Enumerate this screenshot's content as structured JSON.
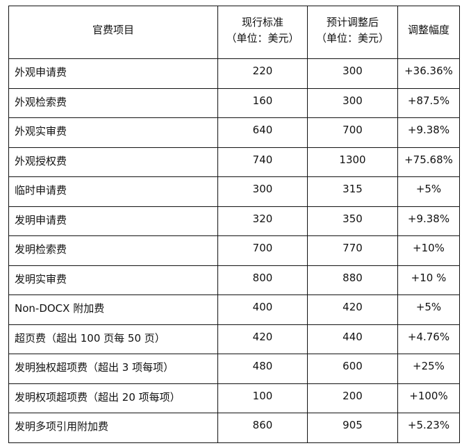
{
  "table": {
    "headers": [
      {
        "line1": "官费项目",
        "line2": ""
      },
      {
        "line1": "现行标准",
        "line2": "（单位：美元）"
      },
      {
        "line1": "预计调整后",
        "line2": "（单位：美元）"
      },
      {
        "line1": "调整幅度",
        "line2": ""
      }
    ],
    "rows": [
      [
        "外观申请费",
        "220",
        "300",
        "+36.36%"
      ],
      [
        "外观检索费",
        "160",
        "300",
        "+87.5%"
      ],
      [
        "外观实审费",
        "640",
        "700",
        "+9.38%"
      ],
      [
        "外观授权费",
        "740",
        "1300",
        "+75.68%"
      ],
      [
        "临时申请费",
        "300",
        "315",
        "+5%"
      ],
      [
        "发明申请费",
        "320",
        "350",
        "+9.38%"
      ],
      [
        "发明检索费",
        "700",
        "770",
        "+10%"
      ],
      [
        "发明实审费",
        "800",
        "880",
        "+10 %"
      ],
      [
        "Non-DOCX 附加费",
        "400",
        "420",
        "+5%"
      ],
      [
        "超页费（超出 100 页每 50 页）",
        "420",
        "440",
        "+4.76%"
      ],
      [
        "发明独权超项费（超出 3 项每项）",
        "480",
        "600",
        "+25%"
      ],
      [
        "发明权项超项费（超出 20 项每项）",
        "100",
        "200",
        "+100%"
      ],
      [
        "发明多项引用附加费",
        "860",
        "905",
        "+5.23%"
      ]
    ]
  }
}
